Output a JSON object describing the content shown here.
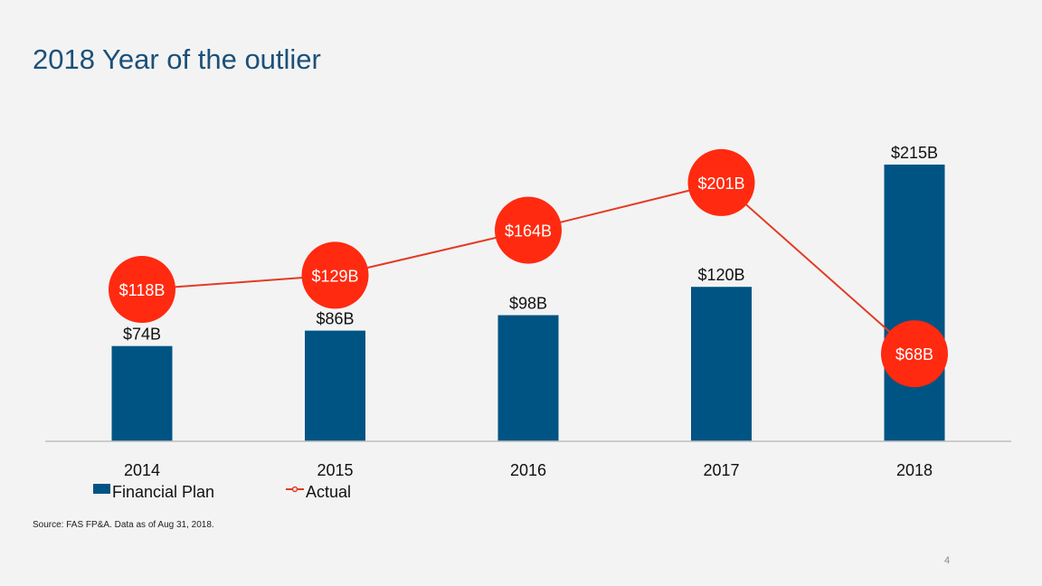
{
  "slide": {
    "title": "2018 Year of the outlier",
    "source": "Source: FAS FP&A. Data as of Aug 31, 2018.",
    "page_number": "4"
  },
  "colors": {
    "bar": "#005483",
    "line": "#e33b25",
    "bubble": "#ff2a10",
    "axis": "#bfbfbf",
    "text": "#111111"
  },
  "chart_data": {
    "type": "bar",
    "categories": [
      "2014",
      "2015",
      "2016",
      "2017",
      "2018"
    ],
    "series": [
      {
        "name": "Financial Plan",
        "type": "bar",
        "values": [
          74,
          86,
          98,
          120,
          215
        ],
        "labels": [
          "$74B",
          "$86B",
          "$98B",
          "$120B",
          "$215B"
        ]
      },
      {
        "name": "Actual",
        "type": "line",
        "values": [
          118,
          129,
          164,
          201,
          68
        ],
        "labels": [
          "$118B",
          "$129B",
          "$164B",
          "$201B",
          "$68B"
        ]
      }
    ],
    "ylim": [
      0,
      215
    ],
    "legend": "bottom-left",
    "grid": false
  }
}
